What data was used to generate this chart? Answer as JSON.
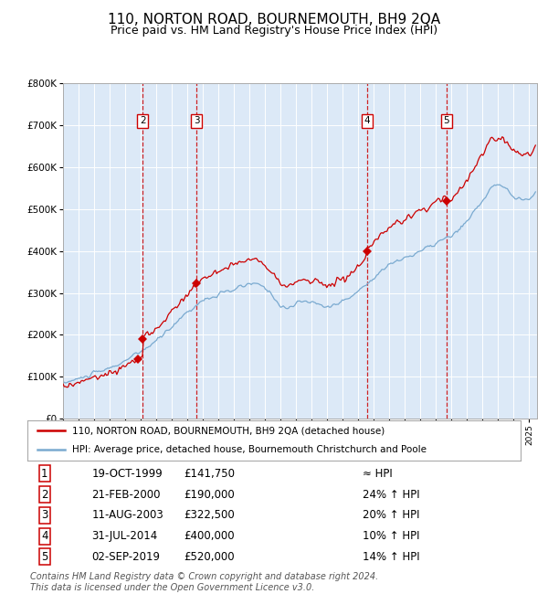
{
  "title": "110, NORTON ROAD, BOURNEMOUTH, BH9 2QA",
  "subtitle": "Price paid vs. HM Land Registry's House Price Index (HPI)",
  "title_fontsize": 11,
  "subtitle_fontsize": 9,
  "plot_bg_color": "#dce9f7",
  "fig_bg_color": "#ffffff",
  "ylim": [
    0,
    800000
  ],
  "yticks": [
    0,
    100000,
    200000,
    300000,
    400000,
    500000,
    600000,
    700000,
    800000
  ],
  "xlim_start": 1995.0,
  "xlim_end": 2025.5,
  "sale_dates_num": [
    1999.8,
    2000.13,
    2003.6,
    2014.58,
    2019.67
  ],
  "sale_prices": [
    141750,
    190000,
    322500,
    400000,
    520000
  ],
  "sale_labels": [
    "1",
    "2",
    "3",
    "4",
    "5"
  ],
  "vline_dates": [
    2000.13,
    2003.6,
    2014.58,
    2019.67
  ],
  "red_line_color": "#cc0000",
  "blue_line_color": "#7aaad0",
  "marker_color": "#cc0000",
  "vline_color": "#cc0000",
  "grid_color": "#ffffff",
  "legend_entries": [
    "110, NORTON ROAD, BOURNEMOUTH, BH9 2QA (detached house)",
    "HPI: Average price, detached house, Bournemouth Christchurch and Poole"
  ],
  "table_rows": [
    [
      "1",
      "19-OCT-1999",
      "£141,750",
      "≈ HPI"
    ],
    [
      "2",
      "21-FEB-2000",
      "£190,000",
      "24% ↑ HPI"
    ],
    [
      "3",
      "11-AUG-2003",
      "£322,500",
      "20% ↑ HPI"
    ],
    [
      "4",
      "31-JUL-2014",
      "£400,000",
      "10% ↑ HPI"
    ],
    [
      "5",
      "02-SEP-2019",
      "£520,000",
      "14% ↑ HPI"
    ]
  ],
  "footer": "Contains HM Land Registry data © Crown copyright and database right 2024.\nThis data is licensed under the Open Government Licence v3.0.",
  "footer_fontsize": 7
}
